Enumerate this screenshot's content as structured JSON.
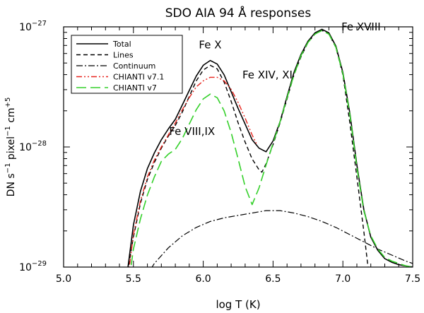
{
  "chart_data": {
    "type": "line",
    "title": "SDO AIA 94 Å responses",
    "xlabel": "log T (K)",
    "ylabel": {
      "base": "DN s",
      "exp1": "−1",
      "part2": " pixel",
      "exp2": "−1",
      "part3": " cm",
      "exp3": "+5"
    },
    "xlim": [
      5.0,
      7.5
    ],
    "ylim_log10": [
      -29,
      -27
    ],
    "x_ticks": [
      {
        "value": 5.0,
        "label": "5.0"
      },
      {
        "value": 5.5,
        "label": "5.5"
      },
      {
        "value": 6.0,
        "label": "6.0"
      },
      {
        "value": 6.5,
        "label": "6.5"
      },
      {
        "value": 7.0,
        "label": "7.0"
      },
      {
        "value": 7.5,
        "label": "7.5"
      }
    ],
    "y_ticks": [
      {
        "log10": -29,
        "base": "10",
        "exp": "−29"
      },
      {
        "log10": -28,
        "base": "10",
        "exp": "−28"
      },
      {
        "log10": -27,
        "base": "10",
        "exp": "−27"
      }
    ],
    "annotations": [
      {
        "text": "Fe X",
        "x": 6.05,
        "y_log10": -27.18
      },
      {
        "text": "Fe XIV, XI",
        "x": 6.46,
        "y_log10": -27.43
      },
      {
        "text": "Fe VIII,IX",
        "x": 5.92,
        "y_log10": -27.9
      },
      {
        "text": "Fe XVIII",
        "x": 7.13,
        "y_log10": -27.03
      }
    ],
    "legend": {
      "position": "top-left",
      "entries": [
        "Total",
        "Lines",
        "Continuum",
        "CHIANTI v7.1",
        "CHIANTI v7"
      ]
    },
    "series": [
      {
        "name": "Total",
        "color": "#000000",
        "dash": "solid",
        "points": [
          [
            5.45,
            -29.1
          ],
          [
            5.5,
            -28.65
          ],
          [
            5.55,
            -28.37
          ],
          [
            5.6,
            -28.18
          ],
          [
            5.65,
            -28.05
          ],
          [
            5.7,
            -27.94
          ],
          [
            5.75,
            -27.85
          ],
          [
            5.8,
            -27.77
          ],
          [
            5.85,
            -27.65
          ],
          [
            5.9,
            -27.53
          ],
          [
            5.95,
            -27.41
          ],
          [
            6.0,
            -27.32
          ],
          [
            6.05,
            -27.28
          ],
          [
            6.1,
            -27.31
          ],
          [
            6.15,
            -27.4
          ],
          [
            6.2,
            -27.54
          ],
          [
            6.25,
            -27.68
          ],
          [
            6.3,
            -27.81
          ],
          [
            6.35,
            -27.94
          ],
          [
            6.4,
            -28.01
          ],
          [
            6.45,
            -28.04
          ],
          [
            6.5,
            -27.95
          ],
          [
            6.55,
            -27.79
          ],
          [
            6.6,
            -27.58
          ],
          [
            6.65,
            -27.38
          ],
          [
            6.7,
            -27.23
          ],
          [
            6.75,
            -27.12
          ],
          [
            6.8,
            -27.05
          ],
          [
            6.85,
            -27.02
          ],
          [
            6.9,
            -27.05
          ],
          [
            6.95,
            -27.16
          ],
          [
            7.0,
            -27.38
          ],
          [
            7.05,
            -27.72
          ],
          [
            7.1,
            -28.15
          ],
          [
            7.15,
            -28.52
          ],
          [
            7.2,
            -28.75
          ],
          [
            7.25,
            -28.86
          ],
          [
            7.3,
            -28.93
          ],
          [
            7.35,
            -28.96
          ],
          [
            7.4,
            -28.98
          ],
          [
            7.45,
            -28.99
          ],
          [
            7.5,
            -29.0
          ]
        ]
      },
      {
        "name": "Lines",
        "color": "#000000",
        "dash": "dashed",
        "points": [
          [
            5.45,
            -29.1
          ],
          [
            5.5,
            -28.75
          ],
          [
            5.55,
            -28.47
          ],
          [
            5.6,
            -28.27
          ],
          [
            5.65,
            -28.13
          ],
          [
            5.7,
            -28.01
          ],
          [
            5.75,
            -27.91
          ],
          [
            5.8,
            -27.82
          ],
          [
            5.85,
            -27.71
          ],
          [
            5.9,
            -27.58
          ],
          [
            5.95,
            -27.45
          ],
          [
            6.0,
            -27.36
          ],
          [
            6.05,
            -27.32
          ],
          [
            6.1,
            -27.35
          ],
          [
            6.15,
            -27.46
          ],
          [
            6.2,
            -27.62
          ],
          [
            6.25,
            -27.8
          ],
          [
            6.3,
            -27.96
          ],
          [
            6.35,
            -28.1
          ],
          [
            6.4,
            -28.19
          ],
          [
            6.42,
            -28.21
          ],
          [
            6.45,
            -28.14
          ],
          [
            6.5,
            -27.98
          ],
          [
            6.55,
            -27.8
          ],
          [
            6.6,
            -27.6
          ],
          [
            6.65,
            -27.4
          ],
          [
            6.7,
            -27.25
          ],
          [
            6.75,
            -27.13
          ],
          [
            6.8,
            -27.06
          ],
          [
            6.85,
            -27.03
          ],
          [
            6.9,
            -27.06
          ],
          [
            6.95,
            -27.17
          ],
          [
            7.0,
            -27.4
          ],
          [
            7.05,
            -27.8
          ],
          [
            7.1,
            -28.25
          ],
          [
            7.15,
            -28.7
          ],
          [
            7.18,
            -29.0
          ],
          [
            7.2,
            -29.2
          ]
        ]
      },
      {
        "name": "Continuum",
        "color": "#000000",
        "dash": "dash-dot",
        "points": [
          [
            5.58,
            -29.1
          ],
          [
            5.65,
            -28.97
          ],
          [
            5.75,
            -28.84
          ],
          [
            5.85,
            -28.74
          ],
          [
            5.95,
            -28.67
          ],
          [
            6.05,
            -28.62
          ],
          [
            6.15,
            -28.59
          ],
          [
            6.25,
            -28.57
          ],
          [
            6.35,
            -28.55
          ],
          [
            6.45,
            -28.53
          ],
          [
            6.55,
            -28.53
          ],
          [
            6.65,
            -28.55
          ],
          [
            6.75,
            -28.58
          ],
          [
            6.85,
            -28.62
          ],
          [
            6.95,
            -28.67
          ],
          [
            7.05,
            -28.73
          ],
          [
            7.15,
            -28.79
          ],
          [
            7.25,
            -28.85
          ],
          [
            7.35,
            -28.9
          ],
          [
            7.45,
            -28.95
          ],
          [
            7.5,
            -28.97
          ]
        ]
      },
      {
        "name": "CHIANTI v7.1",
        "color": "#e8241d",
        "dash": "dash-dot-dot",
        "points": [
          [
            5.46,
            -29.1
          ],
          [
            5.5,
            -28.73
          ],
          [
            5.55,
            -28.45
          ],
          [
            5.6,
            -28.25
          ],
          [
            5.65,
            -28.11
          ],
          [
            5.7,
            -28.0
          ],
          [
            5.75,
            -27.9
          ],
          [
            5.8,
            -27.8
          ],
          [
            5.85,
            -27.69
          ],
          [
            5.9,
            -27.59
          ],
          [
            5.95,
            -27.5
          ],
          [
            6.0,
            -27.45
          ],
          [
            6.05,
            -27.42
          ],
          [
            6.1,
            -27.42
          ],
          [
            6.15,
            -27.45
          ],
          [
            6.2,
            -27.52
          ],
          [
            6.25,
            -27.63
          ],
          [
            6.3,
            -27.76
          ],
          [
            6.35,
            -27.9
          ],
          [
            6.38,
            -27.97
          ]
        ]
      },
      {
        "name": "CHIANTI v7",
        "color": "#34d02a",
        "dash": "long-dash",
        "points": [
          [
            5.47,
            -29.1
          ],
          [
            5.5,
            -28.85
          ],
          [
            5.55,
            -28.6
          ],
          [
            5.6,
            -28.4
          ],
          [
            5.65,
            -28.25
          ],
          [
            5.7,
            -28.12
          ],
          [
            5.75,
            -28.06
          ],
          [
            5.8,
            -28.02
          ],
          [
            5.85,
            -27.93
          ],
          [
            5.9,
            -27.81
          ],
          [
            5.95,
            -27.69
          ],
          [
            6.0,
            -27.6
          ],
          [
            6.05,
            -27.56
          ],
          [
            6.1,
            -27.59
          ],
          [
            6.15,
            -27.7
          ],
          [
            6.2,
            -27.88
          ],
          [
            6.25,
            -28.1
          ],
          [
            6.3,
            -28.33
          ],
          [
            6.35,
            -28.48
          ],
          [
            6.4,
            -28.34
          ],
          [
            6.45,
            -28.15
          ],
          [
            6.5,
            -27.97
          ],
          [
            6.55,
            -27.79
          ],
          [
            6.6,
            -27.59
          ],
          [
            6.65,
            -27.4
          ],
          [
            6.7,
            -27.24
          ],
          [
            6.75,
            -27.13
          ],
          [
            6.8,
            -27.06
          ],
          [
            6.85,
            -27.03
          ],
          [
            6.9,
            -27.06
          ],
          [
            6.95,
            -27.17
          ],
          [
            7.0,
            -27.39
          ],
          [
            7.05,
            -27.73
          ],
          [
            7.1,
            -28.17
          ],
          [
            7.15,
            -28.53
          ],
          [
            7.2,
            -28.74
          ],
          [
            7.25,
            -28.85
          ],
          [
            7.3,
            -28.92
          ],
          [
            7.35,
            -28.95
          ],
          [
            7.4,
            -28.97
          ],
          [
            7.45,
            -28.99
          ],
          [
            7.5,
            -29.0
          ]
        ]
      }
    ]
  }
}
